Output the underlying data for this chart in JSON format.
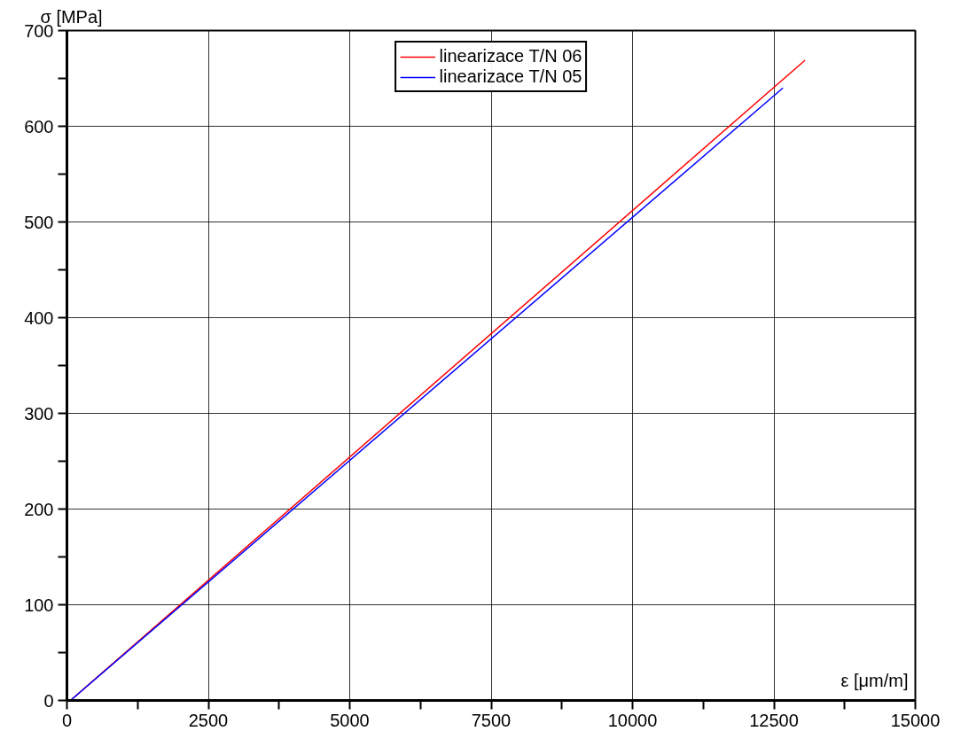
{
  "chart_data": {
    "type": "line",
    "xlabel": "ε [μm/m]",
    "ylabel": "σ [MPa]",
    "xlim": [
      0,
      15000
    ],
    "ylim": [
      0,
      700
    ],
    "xticks": [
      0,
      {
        "value": 1250,
        "label": null
      },
      2500,
      {
        "value": 3750,
        "label": null
      },
      5000,
      {
        "value": 6250,
        "label": null
      },
      7500,
      {
        "value": 8750,
        "label": null
      },
      10000,
      {
        "value": 11250,
        "label": null
      },
      12500,
      {
        "value": 13750,
        "label": null
      },
      15000
    ],
    "yticks": [
      0,
      {
        "value": 50,
        "label": null
      },
      100,
      {
        "value": 150,
        "label": null
      },
      200,
      {
        "value": 250,
        "label": null
      },
      300,
      {
        "value": 350,
        "label": null
      },
      400,
      {
        "value": 450,
        "label": null
      },
      500,
      {
        "value": 550,
        "label": null
      },
      600,
      {
        "value": 650,
        "label": null
      },
      700
    ],
    "grid": true,
    "legend": "top",
    "series": [
      {
        "name": "linearizace T/N 06",
        "color": "#ff0000",
        "x": [
          62,
          13050
        ],
        "values": [
          0,
          669
        ]
      },
      {
        "name": "linearizace T/N 05",
        "color": "#0000ff",
        "x": [
          62,
          12660
        ],
        "values": [
          0,
          640
        ]
      }
    ]
  }
}
